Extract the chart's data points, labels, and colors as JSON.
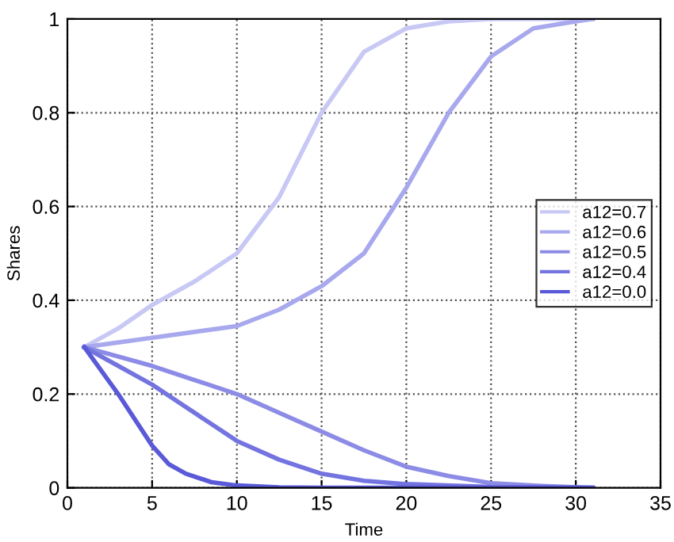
{
  "chart_data": {
    "type": "line",
    "xlabel": "Time",
    "ylabel": "Shares",
    "xlim": [
      0,
      35
    ],
    "ylim": [
      0,
      1
    ],
    "xticks": [
      0,
      5,
      10,
      15,
      20,
      25,
      30,
      35
    ],
    "yticks": [
      0,
      0.2,
      0.4,
      0.6,
      0.8,
      1
    ],
    "grid": true,
    "legend": "right",
    "line_style": "solid",
    "marker": "none",
    "series": [
      {
        "name": "a12=0.7",
        "color": "#c8c8f5",
        "x": [
          1,
          3,
          5,
          7.5,
          10,
          12.5,
          15,
          17.5,
          20,
          22.5,
          25,
          28,
          31
        ],
        "values": [
          0.3,
          0.34,
          0.39,
          0.44,
          0.5,
          0.62,
          0.8,
          0.93,
          0.98,
          0.995,
          1,
          1,
          1
        ]
      },
      {
        "name": "a12=0.6",
        "color": "#a8a8ee",
        "x": [
          1,
          5,
          10,
          12.5,
          15,
          17.5,
          20,
          22.5,
          25,
          27.5,
          30,
          31
        ],
        "values": [
          0.3,
          0.32,
          0.345,
          0.38,
          0.43,
          0.5,
          0.64,
          0.8,
          0.92,
          0.98,
          0.995,
          1
        ]
      },
      {
        "name": "a12=0.5",
        "color": "#8c8ce6",
        "x": [
          1,
          5,
          7.5,
          10,
          12.5,
          15,
          17.5,
          20,
          22.5,
          25,
          28,
          31
        ],
        "values": [
          0.3,
          0.26,
          0.23,
          0.2,
          0.16,
          0.12,
          0.08,
          0.045,
          0.025,
          0.01,
          0.004,
          0
        ]
      },
      {
        "name": "a12=0.4",
        "color": "#7474e0",
        "x": [
          1,
          3,
          5,
          7.5,
          10,
          12.5,
          15,
          17.5,
          20,
          25,
          31
        ],
        "values": [
          0.3,
          0.26,
          0.22,
          0.16,
          0.1,
          0.06,
          0.03,
          0.015,
          0.008,
          0.002,
          0
        ]
      },
      {
        "name": "a12=0.0",
        "color": "#5a5ad8",
        "x": [
          1,
          3,
          5,
          6,
          7,
          8.5,
          10,
          12.5,
          15,
          20,
          25,
          31
        ],
        "values": [
          0.3,
          0.2,
          0.09,
          0.05,
          0.03,
          0.012,
          0.005,
          0.001,
          0,
          0,
          0,
          0
        ]
      }
    ]
  }
}
